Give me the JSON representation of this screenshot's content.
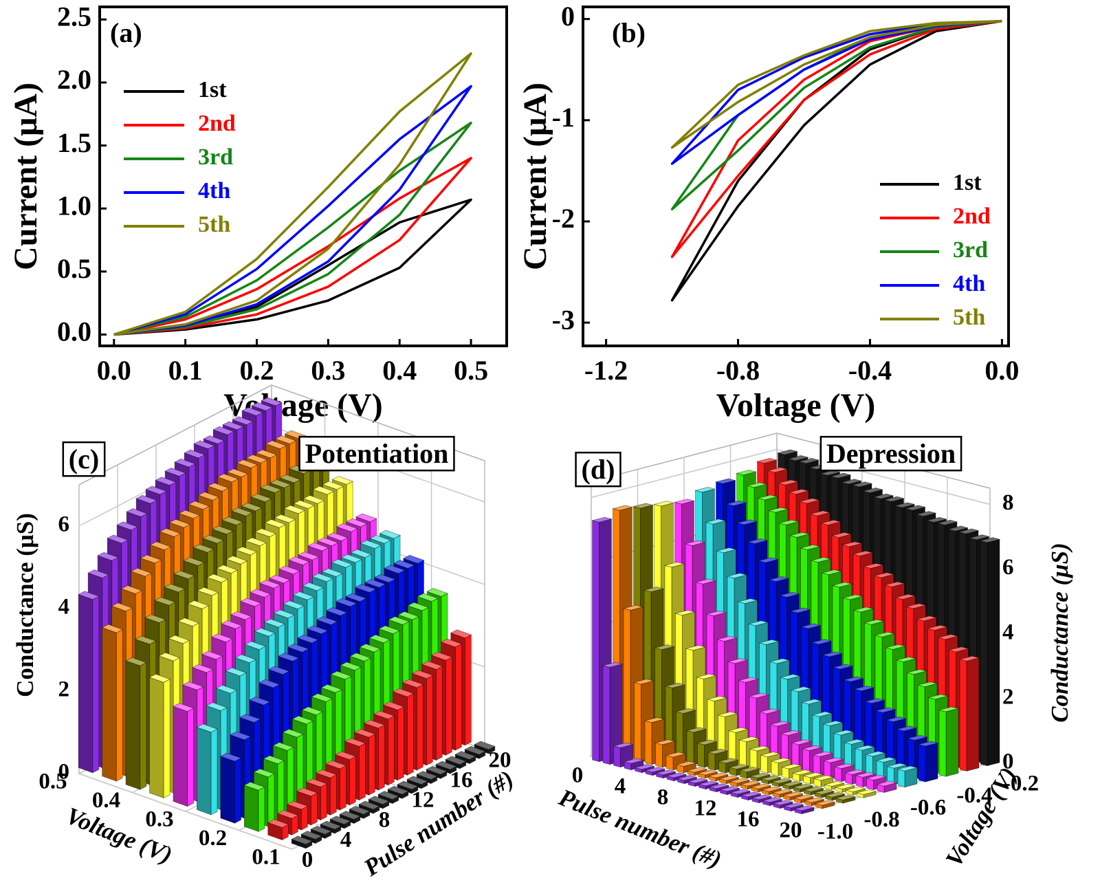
{
  "chart_data": [
    {
      "type": "line",
      "panel_label": "(a)",
      "xlabel": "Voltage (V)",
      "ylabel": "Current (μA)",
      "x": [
        0,
        0.1,
        0.2,
        0.3,
        0.4,
        0.5,
        0.4,
        0.3,
        0.2,
        0.1,
        0
      ],
      "xlim": [
        -0.02,
        0.55
      ],
      "xticks": [
        {
          "value": 0,
          "label": "0.0"
        },
        0.1,
        0.2,
        0.3,
        0.4,
        0.5
      ],
      "ylim": [
        -0.09,
        2.6
      ],
      "yticks": [
        {
          "value": 0,
          "label": "0.0"
        },
        0.5,
        {
          "value": 1,
          "label": "1.0"
        },
        1.5,
        {
          "value": 2,
          "label": "2.0"
        },
        2.5
      ],
      "series": [
        {
          "name": "1st",
          "color": "#000000",
          "values": [
            0,
            0.04,
            0.12,
            0.27,
            0.53,
            1.07,
            0.89,
            0.55,
            0.22,
            0.08,
            0
          ]
        },
        {
          "name": "2nd",
          "color": "#ff0000",
          "values": [
            0,
            0.05,
            0.16,
            0.38,
            0.75,
            1.4,
            1.08,
            0.7,
            0.36,
            0.12,
            0
          ]
        },
        {
          "name": "3rd",
          "color": "#168516",
          "values": [
            0,
            0.06,
            0.2,
            0.48,
            0.95,
            1.68,
            1.3,
            0.85,
            0.43,
            0.14,
            0
          ]
        },
        {
          "name": "4th",
          "color": "#0000ff",
          "values": [
            0,
            0.07,
            0.24,
            0.58,
            1.15,
            1.97,
            1.55,
            1.02,
            0.52,
            0.16,
            0
          ]
        },
        {
          "name": "5th",
          "color": "#808000",
          "values": [
            0,
            0.08,
            0.27,
            0.68,
            1.35,
            2.23,
            1.77,
            1.17,
            0.6,
            0.18,
            0
          ]
        }
      ]
    },
    {
      "type": "line",
      "panel_label": "(b)",
      "xlabel": "Voltage (V)",
      "ylabel": "Current (μA)",
      "x": [
        0,
        -0.2,
        -0.4,
        -0.6,
        -0.8,
        -1.0,
        -0.8,
        -0.6,
        -0.4,
        -0.2,
        0
      ],
      "xlim": [
        -1.27,
        0.02
      ],
      "xticks": [
        -1.2,
        -0.8,
        -0.4,
        {
          "value": 0,
          "label": "0.0"
        }
      ],
      "ylim": [
        -3.23,
        0.12
      ],
      "yticks": [
        0,
        -1,
        -2,
        -3
      ],
      "series": [
        {
          "name": "1st",
          "color": "#000000",
          "values": [
            -0.02,
            -0.08,
            -0.3,
            -0.8,
            -1.6,
            -2.78,
            -1.85,
            -1.05,
            -0.45,
            -0.12,
            -0.02
          ]
        },
        {
          "name": "2nd",
          "color": "#ff0000",
          "values": [
            -0.02,
            -0.07,
            -0.22,
            -0.6,
            -1.2,
            -2.35,
            -1.55,
            -0.8,
            -0.35,
            -0.1,
            -0.02
          ]
        },
        {
          "name": "3rd",
          "color": "#168516",
          "values": [
            -0.02,
            -0.06,
            -0.18,
            -0.5,
            -0.95,
            -1.88,
            -1.3,
            -0.68,
            -0.28,
            -0.08,
            -0.02
          ]
        },
        {
          "name": "4th",
          "color": "#0000ff",
          "values": [
            -0.02,
            -0.05,
            -0.15,
            -0.38,
            -0.7,
            -1.43,
            -0.95,
            -0.5,
            -0.2,
            -0.07,
            -0.02
          ]
        },
        {
          "name": "5th",
          "color": "#808000",
          "values": [
            -0.02,
            -0.04,
            -0.12,
            -0.36,
            -0.65,
            -1.27,
            -0.82,
            -0.45,
            -0.18,
            -0.06,
            -0.02
          ]
        }
      ]
    },
    {
      "type": "bar3d",
      "panel_label": "(c)",
      "title": "Potentiation",
      "xlabel": "Pulse number (#)",
      "ylabel": "Voltage (V)",
      "zlabel": "Conductance (μS)",
      "x": [
        1,
        2,
        3,
        4,
        5,
        6,
        7,
        8,
        9,
        10,
        11,
        12,
        13,
        14,
        15,
        16,
        17,
        18,
        19,
        20
      ],
      "xlim": [
        0,
        20
      ],
      "xticks": [
        0,
        4,
        8,
        12,
        16,
        20
      ],
      "ylim": [
        0.1,
        0.5
      ],
      "yticks": [
        0.1,
        0.2,
        0.3,
        0.4,
        0.5
      ],
      "zlim": [
        0,
        7
      ],
      "zticks": [
        0,
        2,
        4,
        6
      ],
      "series": [
        {
          "color": "#1a1a1a",
          "values": [
            0.1,
            0.1,
            0.1,
            0.1,
            0.1,
            0.1,
            0.1,
            0.1,
            0.1,
            0.1,
            0.1,
            0.1,
            0.1,
            0.1,
            0.1,
            0.1,
            0.1,
            0.1,
            0.1,
            0.1
          ]
        },
        {
          "color": "#ff1a1a",
          "values": [
            0.3,
            0.4,
            0.5,
            0.7,
            0.8,
            0.9,
            1.0,
            1.1,
            1.3,
            1.4,
            1.5,
            1.6,
            1.7,
            1.9,
            2.0,
            2.1,
            2.2,
            2.3,
            2.5,
            2.6
          ]
        },
        {
          "color": "#33ee00",
          "values": [
            1.0,
            1.2,
            1.4,
            1.6,
            1.8,
            2.0,
            2.1,
            2.3,
            2.4,
            2.6,
            2.7,
            2.8,
            2.9,
            3.0,
            3.1,
            3.2,
            3.2,
            3.3,
            3.4,
            3.4
          ]
        },
        {
          "color": "#0010e0",
          "values": [
            1.5,
            1.9,
            2.2,
            2.5,
            2.8,
            3.0,
            3.2,
            3.3,
            3.4,
            3.5,
            3.6,
            3.7,
            3.8,
            3.8,
            3.9,
            3.9,
            3.9,
            4.0,
            4.0,
            4.0
          ]
        },
        {
          "color": "#33e0e6",
          "values": [
            2.0,
            2.4,
            2.7,
            3.0,
            3.2,
            3.4,
            3.6,
            3.7,
            3.8,
            3.9,
            4.0,
            4.1,
            4.2,
            4.2,
            4.3,
            4.3,
            4.3,
            4.4,
            4.4,
            4.4
          ]
        },
        {
          "color": "#ff33ff",
          "values": [
            2.3,
            2.7,
            3.0,
            3.2,
            3.5,
            3.7,
            3.8,
            4.0,
            4.1,
            4.2,
            4.2,
            4.3,
            4.4,
            4.4,
            4.5,
            4.5,
            4.5,
            4.6,
            4.6,
            4.6
          ]
        },
        {
          "color": "#ffff33",
          "values": [
            2.8,
            3.2,
            3.5,
            3.8,
            4.1,
            4.3,
            4.5,
            4.6,
            4.7,
            4.8,
            4.9,
            5.0,
            5.1,
            5.1,
            5.2,
            5.2,
            5.2,
            5.3,
            5.3,
            5.3
          ]
        },
        {
          "color": "#808000",
          "values": [
            3.0,
            3.4,
            3.8,
            4.1,
            4.3,
            4.5,
            4.7,
            4.9,
            5.0,
            5.1,
            5.2,
            5.3,
            5.3,
            5.4,
            5.5,
            5.5,
            5.5,
            5.6,
            5.6,
            5.6
          ]
        },
        {
          "color": "#ff8000",
          "values": [
            3.6,
            4.0,
            4.3,
            4.6,
            4.8,
            5.0,
            5.2,
            5.3,
            5.4,
            5.5,
            5.6,
            5.7,
            5.8,
            5.8,
            5.9,
            5.9,
            5.9,
            6.0,
            6.0,
            6.0
          ]
        },
        {
          "color": "#8a2be2",
          "values": [
            4.2,
            4.6,
            4.9,
            5.2,
            5.4,
            5.6,
            5.8,
            5.9,
            6.0,
            6.1,
            6.2,
            6.3,
            6.4,
            6.4,
            6.5,
            6.5,
            6.5,
            6.6,
            6.6,
            6.6
          ]
        }
      ]
    },
    {
      "type": "bar3d",
      "panel_label": "(d)",
      "title": "Depression",
      "xlabel": "Pulse number (#)",
      "ylabel": "Voltage (V)",
      "zlabel": "Conductance (μS)",
      "x": [
        1,
        2,
        3,
        4,
        5,
        6,
        7,
        8,
        9,
        10,
        11,
        12,
        13,
        14,
        15,
        16,
        17,
        18,
        19,
        20
      ],
      "xlim": [
        0,
        20
      ],
      "xticks": [
        0,
        4,
        8,
        12,
        16,
        20
      ],
      "ylim": [
        -1.0,
        -0.2
      ],
      "yticks": [
        {
          "value": -1,
          "label": "-1.0"
        },
        -0.8,
        -0.6,
        -0.4,
        -0.2
      ],
      "zlim": [
        0,
        8.5
      ],
      "zticks": [
        0,
        2,
        4,
        6,
        8
      ],
      "series": [
        {
          "color": "#8a2be2",
          "values": [
            7.4,
            3.0,
            0.6,
            0.2,
            0.1,
            0.1,
            0.1,
            0.1,
            0.1,
            0.1,
            0.1,
            0.1,
            0.1,
            0.1,
            0.1,
            0.1,
            0.1,
            0.1,
            0.1,
            0.1
          ]
        },
        {
          "color": "#ff8000",
          "values": [
            7.6,
            4.6,
            2.4,
            1.3,
            0.7,
            0.4,
            0.2,
            0.1,
            0.1,
            0.1,
            0.1,
            0.1,
            0.1,
            0.1,
            0.1,
            0.1,
            0.1,
            0.1,
            0.1,
            0.1
          ]
        },
        {
          "color": "#808000",
          "values": [
            7.5,
            5.0,
            3.3,
            2.2,
            1.5,
            1.0,
            0.7,
            0.5,
            0.3,
            0.2,
            0.2,
            0.1,
            0.1,
            0.1,
            0.1,
            0.1,
            0.1,
            0.1,
            0.1,
            0.1
          ]
        },
        {
          "color": "#ffff33",
          "values": [
            7.4,
            5.6,
            4.2,
            3.2,
            2.4,
            1.8,
            1.4,
            1.0,
            0.8,
            0.6,
            0.5,
            0.4,
            0.3,
            0.2,
            0.2,
            0.2,
            0.1,
            0.1,
            0.1,
            0.1
          ]
        },
        {
          "color": "#ff33ff",
          "values": [
            7.3,
            6.1,
            5.0,
            4.1,
            3.4,
            2.8,
            2.3,
            1.9,
            1.5,
            1.2,
            1.0,
            0.8,
            0.7,
            0.6,
            0.5,
            0.4,
            0.3,
            0.3,
            0.3,
            0.2
          ]
        },
        {
          "color": "#33e0e6",
          "values": [
            7.5,
            6.6,
            5.8,
            5.1,
            4.4,
            3.8,
            3.3,
            2.8,
            2.4,
            2.1,
            1.8,
            1.5,
            1.3,
            1.1,
            0.9,
            0.8,
            0.7,
            0.6,
            0.5,
            0.5
          ]
        },
        {
          "color": "#0010e0",
          "values": [
            7.6,
            7.0,
            6.5,
            6.0,
            5.5,
            5.0,
            4.6,
            4.2,
            3.8,
            3.4,
            3.1,
            2.8,
            2.5,
            2.3,
            2.0,
            1.8,
            1.6,
            1.4,
            1.2,
            1.1
          ]
        },
        {
          "color": "#33ee00",
          "values": [
            7.7,
            7.4,
            7.1,
            6.8,
            6.5,
            6.2,
            5.9,
            5.6,
            5.3,
            5.0,
            4.7,
            4.4,
            4.1,
            3.8,
            3.5,
            3.2,
            2.9,
            2.6,
            2.3,
            2.0
          ]
        },
        {
          "color": "#ff1a1a",
          "values": [
            7.9,
            7.7,
            7.4,
            7.2,
            7.0,
            6.7,
            6.5,
            6.2,
            6.0,
            5.8,
            5.5,
            5.3,
            5.1,
            4.8,
            4.6,
            4.3,
            4.1,
            3.9,
            3.6,
            3.4
          ]
        },
        {
          "color": "#1a1a1a",
          "values": [
            8.0,
            7.9,
            7.9,
            7.8,
            7.7,
            7.7,
            7.6,
            7.6,
            7.5,
            7.4,
            7.4,
            7.3,
            7.3,
            7.2,
            7.1,
            7.1,
            7.0,
            7.0,
            6.9,
            6.9
          ]
        }
      ]
    }
  ]
}
